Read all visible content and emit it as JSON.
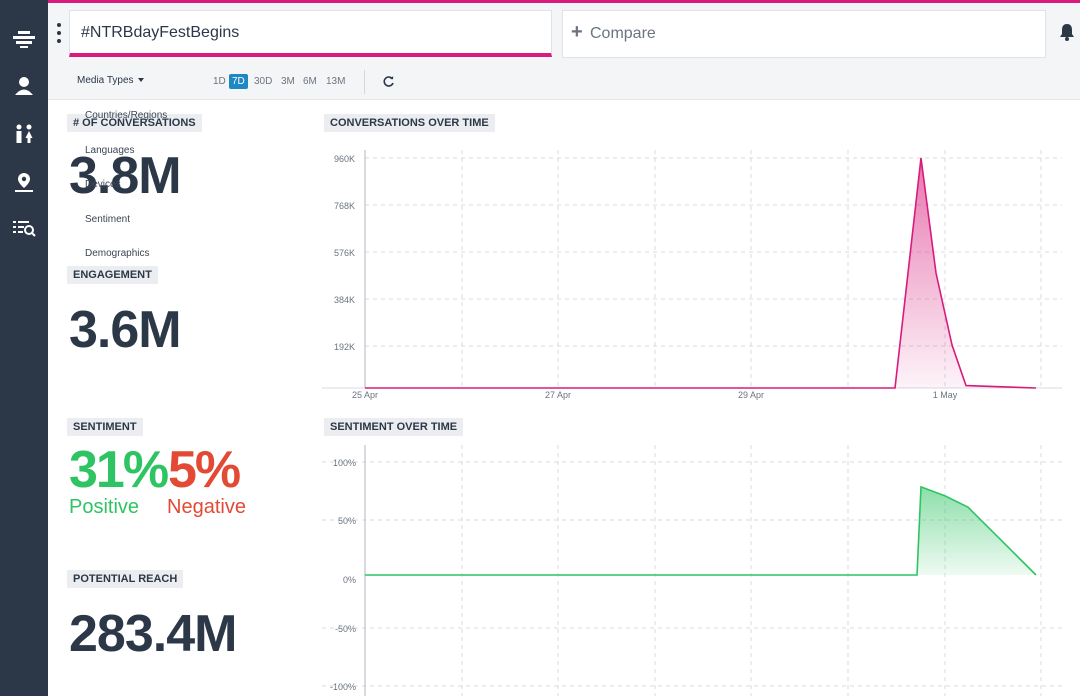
{
  "header": {
    "search_value": "#NTRBdayFestBegins",
    "compare_placeholder": "Compare",
    "accent_color": "#d81b7c"
  },
  "sidebar": {
    "icons": [
      "list-view-icon",
      "user-icon",
      "people-icon",
      "location-icon",
      "search-list-icon"
    ]
  },
  "filters": {
    "media_types_label": "Media Types",
    "ranges": [
      "1D",
      "7D",
      "30D",
      "3M",
      "6M",
      "13M"
    ],
    "active_range": "7D"
  },
  "dropdown": {
    "items": [
      "Countries/Regions",
      "Languages",
      "Devices",
      "Sentiment",
      "Demographics"
    ]
  },
  "metrics": {
    "conversations": {
      "label": "# OF CONVERSATIONS",
      "value": "3.8M"
    },
    "engagement": {
      "label": "ENGAGEMENT",
      "value": "3.6M"
    },
    "sentiment": {
      "label": "SENTIMENT",
      "positive_value": "31%",
      "positive_label": "Positive",
      "negative_value": "5%",
      "negative_label": "Negative",
      "positive_color": "#2fc463",
      "negative_color": "#e24a35"
    },
    "potential_reach": {
      "label": "POTENTIAL REACH",
      "value": "283.4M"
    }
  },
  "conversations_chart": {
    "title": "CONVERSATIONS OVER TIME",
    "y_ticks": [
      "960K",
      "768K",
      "576K",
      "384K",
      "192K"
    ],
    "x_ticks": [
      "25 Apr",
      "27 Apr",
      "29 Apr",
      "1 May"
    ]
  },
  "sentiment_chart": {
    "title": "SENTIMENT OVER TIME",
    "y_ticks": [
      "100%",
      "50%",
      "0%",
      "-50%",
      "-100%"
    ]
  },
  "chart_data": [
    {
      "type": "area",
      "title": "CONVERSATIONS OVER TIME",
      "x": [
        "25 Apr",
        "26 Apr",
        "27 Apr",
        "28 Apr",
        "29 Apr",
        "30 Apr",
        "30 Apr 12h",
        "30 Apr 18h",
        "1 May",
        "1 May 06h",
        "1 May 12h",
        "2 May"
      ],
      "series": [
        {
          "values": [
            0,
            0,
            0,
            0,
            0,
            0,
            0,
            960000,
            480000,
            180000,
            10000,
            0
          ]
        }
      ],
      "ylim": [
        0,
        960000
      ],
      "color": "#d81b7c"
    },
    {
      "type": "area",
      "title": "SENTIMENT OVER TIME",
      "x": [
        "25 Apr",
        "26 Apr",
        "27 Apr",
        "28 Apr",
        "29 Apr",
        "30 Apr",
        "30 Apr 18h",
        "1 May",
        "1 May 06h",
        "1 May 12h",
        "2 May"
      ],
      "series": [
        {
          "values": [
            0,
            0,
            0,
            0,
            0,
            0,
            0,
            78,
            70,
            60,
            0
          ]
        }
      ],
      "ylim": [
        -100,
        100
      ],
      "color": "#2fc463"
    }
  ]
}
